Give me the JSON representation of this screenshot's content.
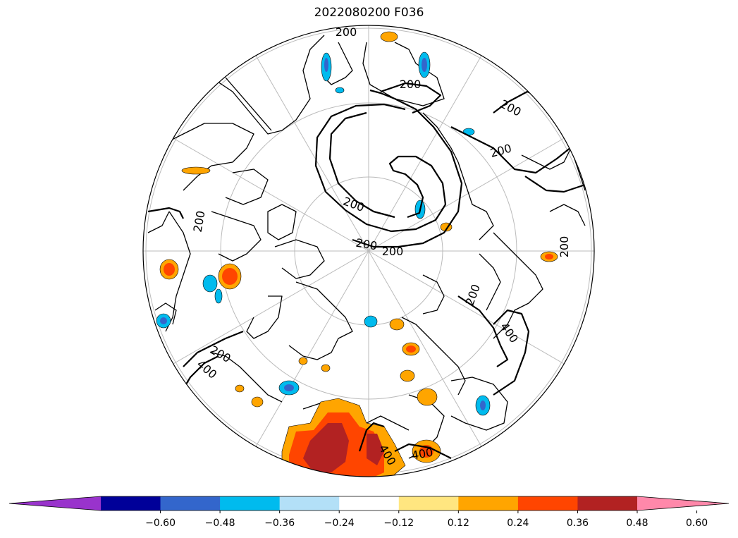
{
  "title": "2022080200 F036",
  "contour_labels": [
    "200",
    "400"
  ],
  "colorbar": {
    "tick_labels": [
      "−0.60",
      "−0.48",
      "−0.36",
      "−0.24",
      "−0.12",
      "0.12",
      "0.24",
      "0.36",
      "0.48",
      "0.60"
    ],
    "colors": [
      "#9933cc",
      "#000099",
      "#3366cc",
      "#00bbee",
      "#b3e0f7",
      "#ffffff",
      "#ffe680",
      "#ffa500",
      "#ff4500",
      "#b22222",
      "#ff88aa"
    ],
    "extend": "both"
  },
  "colors": {
    "coast": "#000000",
    "graticule": "#bbbbbb",
    "contour": "#000000"
  }
}
